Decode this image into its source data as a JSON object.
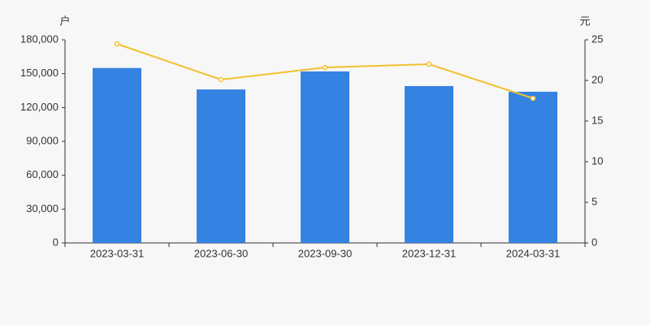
{
  "chart_data": {
    "type": "bar",
    "y_unit": "户",
    "y2_unit": "元",
    "categories": [
      "2023-03-31",
      "2023-06-30",
      "2023-09-30",
      "2023-12-31",
      "2024-03-31"
    ],
    "series": [
      {
        "type": "bar",
        "color": "#3482e2",
        "axis": "y",
        "values": [
          155000,
          136000,
          152000,
          139000,
          134000
        ]
      },
      {
        "type": "line",
        "color": "#f2c12e",
        "axis": "y2",
        "values": [
          24.5,
          20.1,
          21.6,
          22.0,
          17.8
        ]
      }
    ],
    "ylim": [
      0,
      180000
    ],
    "yticks": [
      0,
      {
        "value": 30000,
        "label": "30,000"
      },
      {
        "value": 60000,
        "label": "60,000"
      },
      {
        "value": 90000,
        "label": "90,000"
      },
      {
        "value": 120000,
        "label": "120,000"
      },
      {
        "value": 150000,
        "label": "150,000"
      },
      {
        "value": 180000,
        "label": "180,000"
      }
    ],
    "y2lim": [
      0,
      25
    ],
    "y2ticks": [
      0,
      5,
      10,
      15,
      20,
      25
    ],
    "grid": false
  }
}
